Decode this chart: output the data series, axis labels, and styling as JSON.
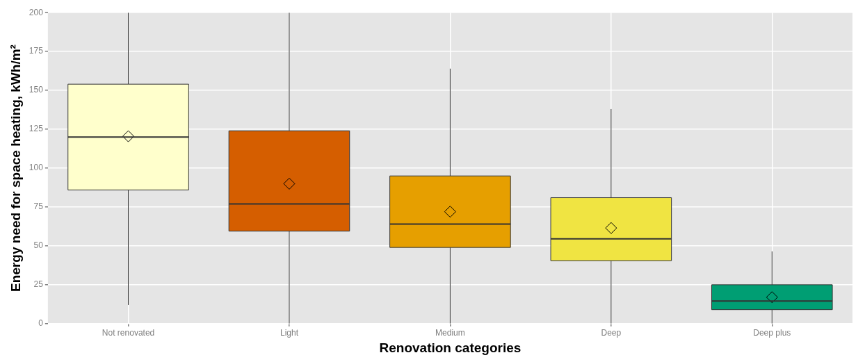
{
  "chart_data": {
    "type": "box",
    "xlabel": "Renovation categories",
    "ylabel": "Energy need for space heating, kWh/m²",
    "categories": [
      "Not renovated",
      "Light",
      "Medium",
      "Deep",
      "Deep plus"
    ],
    "colors": [
      "#ffffcc",
      "#d55e00",
      "#e69f00",
      "#f0e442",
      "#009e73"
    ],
    "boxes": [
      {
        "low": 12,
        "q1": 86,
        "median": 120,
        "q3": 154,
        "high": 200,
        "mean": 120.5
      },
      {
        "low": 0,
        "q1": 59.5,
        "median": 77,
        "q3": 124,
        "high": 200,
        "mean": 90
      },
      {
        "low": 0,
        "q1": 49,
        "median": 64,
        "q3": 95,
        "high": 164,
        "mean": 72
      },
      {
        "low": 0,
        "q1": 40.5,
        "median": 54.5,
        "q3": 81,
        "high": 138,
        "mean": 61.5
      },
      {
        "low": 0,
        "q1": 9,
        "median": 14.5,
        "q3": 25,
        "high": 46.5,
        "mean": 17
      }
    ],
    "ylim": [
      0,
      200
    ],
    "yticks": [
      0,
      25,
      50,
      75,
      100,
      125,
      150,
      175,
      200
    ],
    "grid": true
  }
}
